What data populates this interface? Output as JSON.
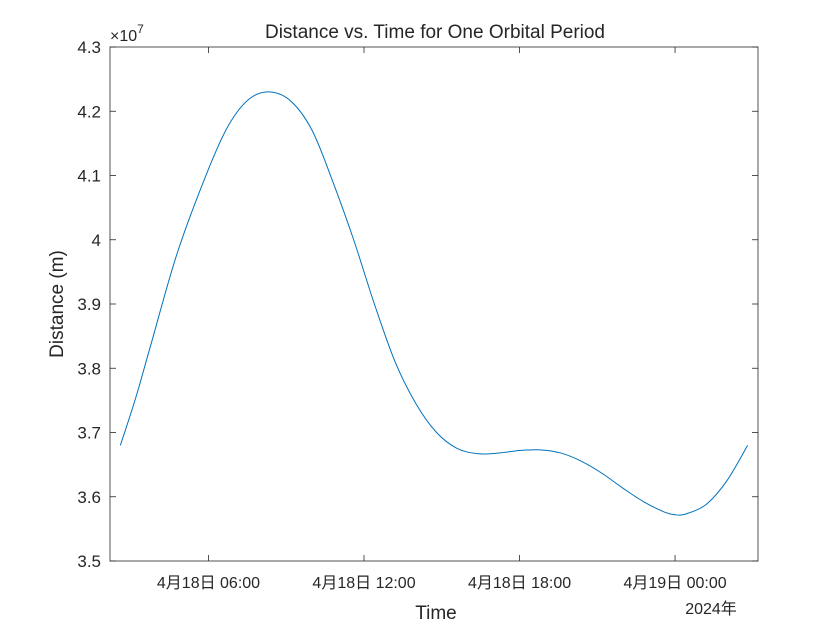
{
  "chart_data": {
    "type": "line",
    "title": "Distance vs. Time for One Orbital Period",
    "xlabel": "Time",
    "ylabel": "Distance (m)",
    "x_secondary_label": "2024年",
    "y_exponent_label": "×10",
    "y_exponent_power": "7",
    "y_scale_factor": 10000000,
    "x_axis_type": "datetime",
    "x_range": [
      "2024-04-18T02:12",
      "2024-04-19T03:12"
    ],
    "x_ticks": [
      {
        "value": "2024-04-18T06:00",
        "label": "4月18日 06:00"
      },
      {
        "value": "2024-04-18T12:00",
        "label": "4月18日 12:00"
      },
      {
        "value": "2024-04-18T18:00",
        "label": "4月18日 18:00"
      },
      {
        "value": "2024-04-19T00:00",
        "label": "4月19日 00:00"
      }
    ],
    "ylim": [
      3.5,
      4.3
    ],
    "y_ticks": [
      3.5,
      3.6,
      3.7,
      3.8,
      3.9,
      4.0,
      4.1,
      4.2,
      4.3
    ],
    "y_tick_labels": [
      "3.5",
      "3.6",
      "3.7",
      "3.8",
      "3.9",
      "4",
      "4.1",
      "4.2",
      "4.3"
    ],
    "grid": false,
    "series": [
      {
        "color": "#0072bd",
        "x": [
          "2024-04-18T02:36",
          "2024-04-18T03:12",
          "2024-04-18T03:48",
          "2024-04-18T04:48",
          "2024-04-18T06:00",
          "2024-04-18T06:48",
          "2024-04-18T07:36",
          "2024-04-18T08:24",
          "2024-04-18T09:12",
          "2024-04-18T10:00",
          "2024-04-18T10:48",
          "2024-04-18T11:36",
          "2024-04-18T12:24",
          "2024-04-18T13:12",
          "2024-04-18T14:00",
          "2024-04-18T14:48",
          "2024-04-18T15:36",
          "2024-04-18T16:24",
          "2024-04-18T17:12",
          "2024-04-18T18:00",
          "2024-04-18T18:48",
          "2024-04-18T19:36",
          "2024-04-18T20:24",
          "2024-04-18T21:12",
          "2024-04-18T22:00",
          "2024-04-18T22:48",
          "2024-04-18T23:36",
          "2024-04-19T00:00",
          "2024-04-19T00:24",
          "2024-04-19T01:12",
          "2024-04-19T02:00",
          "2024-04-19T02:48"
        ],
        "y": [
          3.68,
          3.755,
          3.84,
          3.98,
          4.11,
          4.18,
          4.22,
          4.23,
          4.215,
          4.17,
          4.09,
          4.0,
          3.9,
          3.81,
          3.745,
          3.7,
          3.675,
          3.667,
          3.668,
          3.672,
          3.673,
          3.668,
          3.655,
          3.636,
          3.613,
          3.592,
          3.576,
          3.572,
          3.573,
          3.588,
          3.625,
          3.68
        ]
      }
    ]
  }
}
